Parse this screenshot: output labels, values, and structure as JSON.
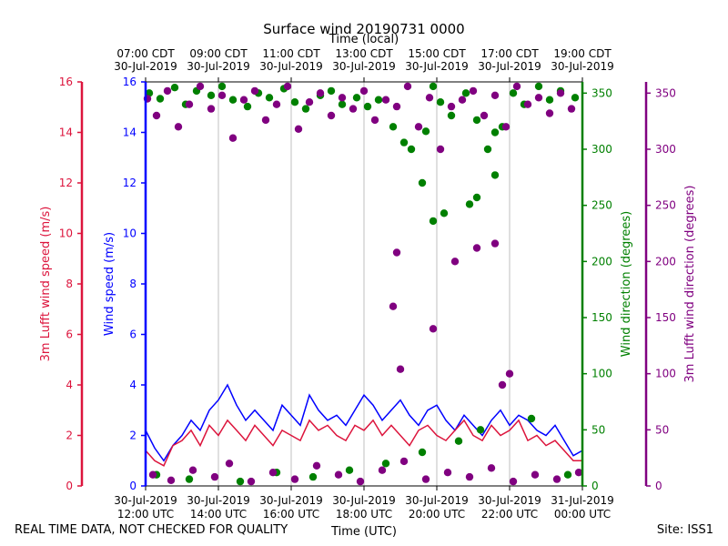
{
  "chart_data": {
    "type": "scatter",
    "title": "Surface wind 20190731 0000",
    "top_axis_label": "Time (local)",
    "xlabel": "Time (UTC)",
    "x_range_hours_utc": [
      12,
      24
    ],
    "bottom_ticks": [
      {
        "hour": 12,
        "line1": "30-Jul-2019",
        "line2": "12:00 UTC"
      },
      {
        "hour": 14,
        "line1": "30-Jul-2019",
        "line2": "14:00 UTC"
      },
      {
        "hour": 16,
        "line1": "30-Jul-2019",
        "line2": "16:00 UTC"
      },
      {
        "hour": 18,
        "line1": "30-Jul-2019",
        "line2": "18:00 UTC"
      },
      {
        "hour": 20,
        "line1": "30-Jul-2019",
        "line2": "20:00 UTC"
      },
      {
        "hour": 22,
        "line1": "30-Jul-2019",
        "line2": "22:00 UTC"
      },
      {
        "hour": 24,
        "line1": "31-Jul-2019",
        "line2": "00:00 UTC"
      }
    ],
    "top_ticks": [
      {
        "hour": 12,
        "line1": "07:00 CDT",
        "line2": "30-Jul-2019"
      },
      {
        "hour": 14,
        "line1": "09:00 CDT",
        "line2": "30-Jul-2019"
      },
      {
        "hour": 16,
        "line1": "11:00 CDT",
        "line2": "30-Jul-2019"
      },
      {
        "hour": 18,
        "line1": "13:00 CDT",
        "line2": "30-Jul-2019"
      },
      {
        "hour": 20,
        "line1": "15:00 CDT",
        "line2": "30-Jul-2019"
      },
      {
        "hour": 22,
        "line1": "17:00 CDT",
        "line2": "30-Jul-2019"
      },
      {
        "hour": 24,
        "line1": "19:00 CDT",
        "line2": "30-Jul-2019"
      }
    ],
    "axes": {
      "lufft_speed": {
        "label": "3m Lufft wind speed (m/s)",
        "color": "#dc143c",
        "range": [
          0,
          16
        ],
        "ticks": [
          0,
          2,
          4,
          6,
          8,
          10,
          12,
          14,
          16
        ]
      },
      "speed": {
        "label": "Wind speed (m/s)",
        "color": "#0000ff",
        "range": [
          0,
          16
        ],
        "ticks": [
          0,
          2,
          4,
          6,
          8,
          10,
          12,
          14,
          16
        ]
      },
      "direction": {
        "label": "Wind direction (degrees)",
        "color": "#008000",
        "range": [
          0,
          360
        ],
        "ticks": [
          0,
          50,
          100,
          150,
          200,
          250,
          300,
          350
        ]
      },
      "lufft_direction": {
        "label": "3m Lufft wind direction (degrees)",
        "color": "#800080",
        "range": [
          0,
          360
        ],
        "ticks": [
          0,
          50,
          100,
          150,
          200,
          250,
          300,
          350
        ]
      }
    },
    "series": [
      {
        "name": "Wind speed",
        "kind": "line",
        "axis": "speed",
        "color": "#0000ff",
        "x": [
          12.0,
          12.25,
          12.5,
          12.75,
          13.0,
          13.25,
          13.5,
          13.75,
          14.0,
          14.25,
          14.5,
          14.75,
          15.0,
          15.25,
          15.5,
          15.75,
          16.0,
          16.25,
          16.5,
          16.75,
          17.0,
          17.25,
          17.5,
          17.75,
          18.0,
          18.25,
          18.5,
          18.75,
          19.0,
          19.25,
          19.5,
          19.75,
          20.0,
          20.25,
          20.5,
          20.75,
          21.0,
          21.25,
          21.5,
          21.75,
          22.0,
          22.25,
          22.5,
          22.75,
          23.0,
          23.25,
          23.5,
          23.75,
          24.0
        ],
        "y": [
          2.2,
          1.5,
          1.0,
          1.6,
          2.0,
          2.6,
          2.2,
          3.0,
          3.4,
          4.0,
          3.2,
          2.6,
          3.0,
          2.6,
          2.2,
          3.2,
          2.8,
          2.4,
          3.6,
          3.0,
          2.6,
          2.8,
          2.4,
          3.0,
          3.6,
          3.2,
          2.6,
          3.0,
          3.4,
          2.8,
          2.4,
          3.0,
          3.2,
          2.6,
          2.2,
          2.8,
          2.4,
          2.0,
          2.6,
          3.0,
          2.4,
          2.8,
          2.6,
          2.2,
          2.0,
          2.4,
          1.8,
          1.2,
          1.4
        ]
      },
      {
        "name": "3m Lufft wind speed",
        "kind": "line",
        "axis": "lufft_speed",
        "color": "#dc143c",
        "x": [
          12.0,
          12.25,
          12.5,
          12.75,
          13.0,
          13.25,
          13.5,
          13.75,
          14.0,
          14.25,
          14.5,
          14.75,
          15.0,
          15.25,
          15.5,
          15.75,
          16.0,
          16.25,
          16.5,
          16.75,
          17.0,
          17.25,
          17.5,
          17.75,
          18.0,
          18.25,
          18.5,
          18.75,
          19.0,
          19.25,
          19.5,
          19.75,
          20.0,
          20.25,
          20.5,
          20.75,
          21.0,
          21.25,
          21.5,
          21.75,
          22.0,
          22.25,
          22.5,
          22.75,
          23.0,
          23.25,
          23.5,
          23.75,
          24.0
        ],
        "y": [
          1.4,
          1.0,
          0.8,
          1.6,
          1.8,
          2.2,
          1.6,
          2.4,
          2.0,
          2.6,
          2.2,
          1.8,
          2.4,
          2.0,
          1.6,
          2.2,
          2.0,
          1.8,
          2.6,
          2.2,
          2.4,
          2.0,
          1.8,
          2.4,
          2.2,
          2.6,
          2.0,
          2.4,
          2.0,
          1.6,
          2.2,
          2.4,
          2.0,
          1.8,
          2.2,
          2.6,
          2.0,
          1.8,
          2.4,
          2.0,
          2.2,
          2.6,
          1.8,
          2.0,
          1.6,
          1.8,
          1.4,
          1.0,
          1.0
        ]
      },
      {
        "name": "Wind direction",
        "kind": "scatter",
        "axis": "direction",
        "color": "#008000",
        "x": [
          12.1,
          12.4,
          12.8,
          13.1,
          13.4,
          13.8,
          14.1,
          14.4,
          14.8,
          15.1,
          15.4,
          15.8,
          16.1,
          16.4,
          16.8,
          17.1,
          17.4,
          17.8,
          18.1,
          18.4,
          18.8,
          19.1,
          19.3,
          19.7,
          19.9,
          20.1,
          20.4,
          20.8,
          21.1,
          21.4,
          21.6,
          21.8,
          22.1,
          22.4,
          22.8,
          23.1,
          23.4,
          23.8,
          12.3,
          13.2,
          14.6,
          15.6,
          16.6,
          17.6,
          18.6,
          19.6,
          20.6,
          21.2,
          22.6,
          23.6,
          19.6,
          19.9,
          20.2,
          20.9,
          21.1,
          21.6
        ],
        "y": [
          350,
          345,
          355,
          340,
          352,
          348,
          356,
          344,
          338,
          350,
          346,
          354,
          342,
          336,
          348,
          352,
          340,
          346,
          338,
          344,
          320,
          306,
          300,
          316,
          356,
          342,
          330,
          350,
          326,
          300,
          315,
          320,
          350,
          340,
          356,
          344,
          352,
          346,
          10,
          6,
          4,
          12,
          8,
          14,
          20,
          30,
          40,
          50,
          60,
          10,
          270,
          236,
          243,
          251,
          257,
          277
        ]
      },
      {
        "name": "3m Lufft wind direction",
        "kind": "scatter",
        "axis": "lufft_direction",
        "color": "#800080",
        "x": [
          12.05,
          12.3,
          12.6,
          12.9,
          13.2,
          13.5,
          13.8,
          14.1,
          14.4,
          14.7,
          15.0,
          15.3,
          15.6,
          15.9,
          16.2,
          16.5,
          16.8,
          17.1,
          17.4,
          17.7,
          18.0,
          18.3,
          18.6,
          18.9,
          19.2,
          19.5,
          19.8,
          20.1,
          20.4,
          20.7,
          21.0,
          21.3,
          21.6,
          21.9,
          22.2,
          22.5,
          22.8,
          23.1,
          23.4,
          23.7,
          12.2,
          12.7,
          13.3,
          13.9,
          14.3,
          14.9,
          15.5,
          16.1,
          16.7,
          17.3,
          17.9,
          18.5,
          19.1,
          19.7,
          20.3,
          20.9,
          21.5,
          22.1,
          22.7,
          23.3,
          23.9,
          18.8,
          18.9,
          19.0,
          19.9,
          20.5,
          21.1,
          21.6,
          21.8,
          22.0
        ],
        "y": [
          345,
          330,
          352,
          320,
          340,
          356,
          336,
          348,
          310,
          344,
          352,
          326,
          340,
          356,
          318,
          342,
          350,
          330,
          346,
          336,
          352,
          326,
          344,
          338,
          356,
          320,
          346,
          300,
          338,
          344,
          352,
          330,
          348,
          320,
          356,
          340,
          346,
          332,
          350,
          336,
          10,
          5,
          14,
          8,
          20,
          4,
          12,
          6,
          18,
          10,
          4,
          14,
          22,
          6,
          12,
          8,
          16,
          4,
          10,
          6,
          12,
          160,
          208,
          104,
          140,
          200,
          212,
          216,
          90,
          100
        ]
      }
    ]
  },
  "footer": {
    "left_note": "REAL TIME DATA, NOT CHECKED FOR QUALITY",
    "right_note": "Site: ISS1"
  }
}
